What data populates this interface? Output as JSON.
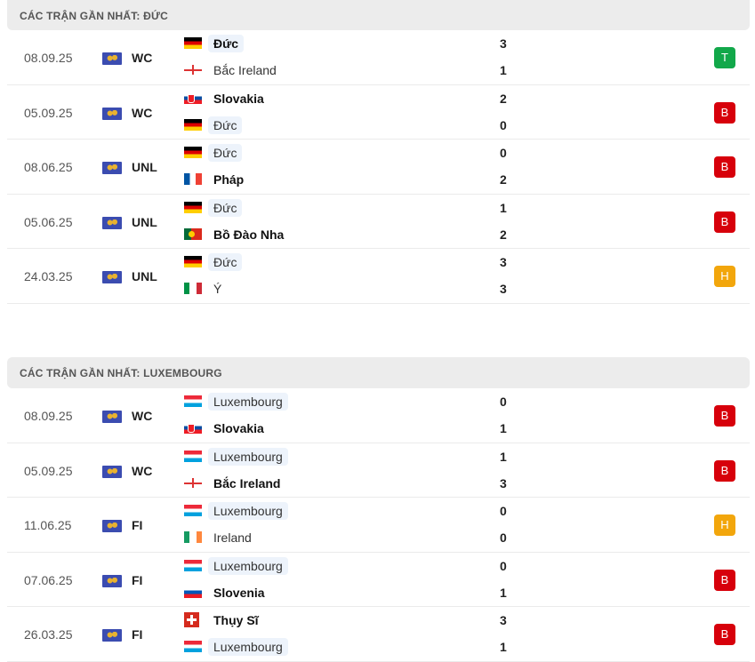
{
  "colors": {
    "T": "#12a84a",
    "B": "#d7000b",
    "H": "#f2a60c"
  },
  "sections": [
    {
      "title": "CÁC TRẬN GẦN NHẤT: ĐỨC",
      "matches": [
        {
          "date": "08.09.25",
          "comp": "WC",
          "teams": [
            {
              "name": "Đức",
              "flag": "de",
              "score": "3",
              "win": true,
              "hl": true
            },
            {
              "name": "Bắc Ireland",
              "flag": "nir",
              "score": "1",
              "win": false,
              "hl": false
            }
          ],
          "result": "T"
        },
        {
          "date": "05.09.25",
          "comp": "WC",
          "teams": [
            {
              "name": "Slovakia",
              "flag": "sk",
              "score": "2",
              "win": true,
              "hl": false
            },
            {
              "name": "Đức",
              "flag": "de",
              "score": "0",
              "win": false,
              "hl": true
            }
          ],
          "result": "B"
        },
        {
          "date": "08.06.25",
          "comp": "UNL",
          "teams": [
            {
              "name": "Đức",
              "flag": "de",
              "score": "0",
              "win": false,
              "hl": true
            },
            {
              "name": "Pháp",
              "flag": "fr",
              "score": "2",
              "win": true,
              "hl": false
            }
          ],
          "result": "B"
        },
        {
          "date": "05.06.25",
          "comp": "UNL",
          "teams": [
            {
              "name": "Đức",
              "flag": "de",
              "score": "1",
              "win": false,
              "hl": true
            },
            {
              "name": "Bồ Đào Nha",
              "flag": "pt",
              "score": "2",
              "win": true,
              "hl": false
            }
          ],
          "result": "B"
        },
        {
          "date": "24.03.25",
          "comp": "UNL",
          "teams": [
            {
              "name": "Đức",
              "flag": "de",
              "score": "3",
              "win": false,
              "hl": true
            },
            {
              "name": "Ý",
              "flag": "it",
              "score": "3",
              "win": false,
              "hl": false
            }
          ],
          "result": "H"
        }
      ]
    },
    {
      "title": "CÁC TRẬN GẦN NHẤT: LUXEMBOURG",
      "matches": [
        {
          "date": "08.09.25",
          "comp": "WC",
          "teams": [
            {
              "name": "Luxembourg",
              "flag": "lu",
              "score": "0",
              "win": false,
              "hl": true
            },
            {
              "name": "Slovakia",
              "flag": "sk",
              "score": "1",
              "win": true,
              "hl": false
            }
          ],
          "result": "B"
        },
        {
          "date": "05.09.25",
          "comp": "WC",
          "teams": [
            {
              "name": "Luxembourg",
              "flag": "lu",
              "score": "1",
              "win": false,
              "hl": true
            },
            {
              "name": "Bắc Ireland",
              "flag": "nir",
              "score": "3",
              "win": true,
              "hl": false
            }
          ],
          "result": "B"
        },
        {
          "date": "11.06.25",
          "comp": "FI",
          "teams": [
            {
              "name": "Luxembourg",
              "flag": "lu",
              "score": "0",
              "win": false,
              "hl": true
            },
            {
              "name": "Ireland",
              "flag": "ie",
              "score": "0",
              "win": false,
              "hl": false
            }
          ],
          "result": "H"
        },
        {
          "date": "07.06.25",
          "comp": "FI",
          "teams": [
            {
              "name": "Luxembourg",
              "flag": "lu",
              "score": "0",
              "win": false,
              "hl": true
            },
            {
              "name": "Slovenia",
              "flag": "si",
              "score": "1",
              "win": true,
              "hl": false
            }
          ],
          "result": "B"
        },
        {
          "date": "26.03.25",
          "comp": "FI",
          "teams": [
            {
              "name": "Thụy Sĩ",
              "flag": "ch",
              "score": "3",
              "win": true,
              "hl": false
            },
            {
              "name": "Luxembourg",
              "flag": "lu",
              "score": "1",
              "win": false,
              "hl": true
            }
          ],
          "result": "B"
        }
      ]
    }
  ]
}
